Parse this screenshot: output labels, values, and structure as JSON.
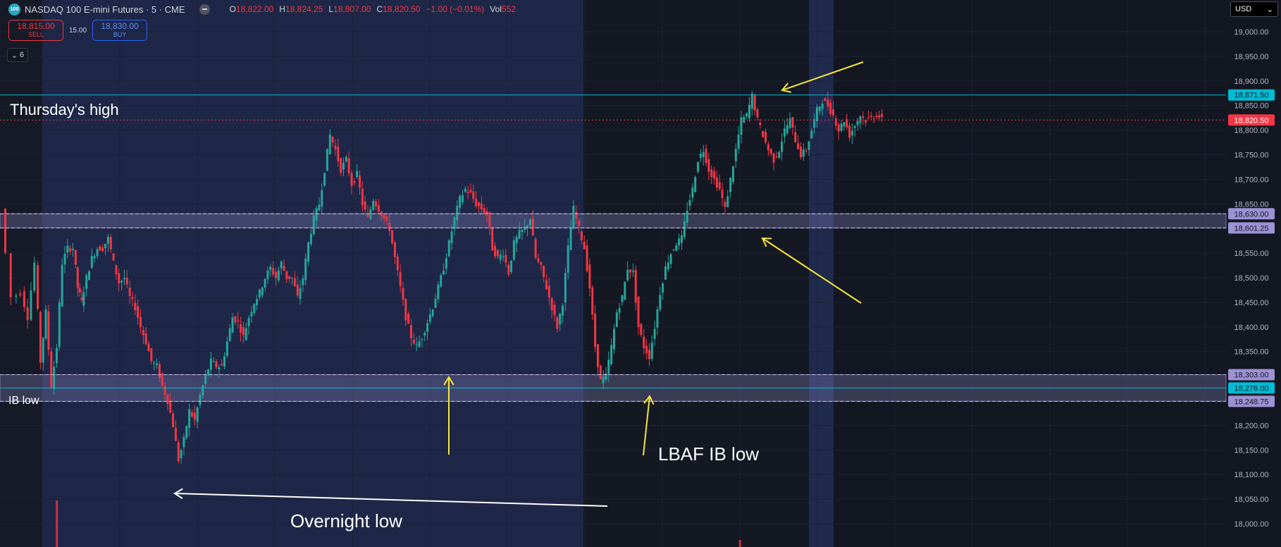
{
  "header": {
    "logo_text": "100",
    "symbol_title": "NASDAQ 100 E-mini Futures · 5 · CME",
    "ohlc": [
      {
        "key": "O",
        "value": "18,822.00"
      },
      {
        "key": "H",
        "value": "18,824.25"
      },
      {
        "key": "L",
        "value": "18,807.00"
      },
      {
        "key": "C",
        "value": "18,820.50"
      }
    ],
    "change": "−1.00 (−0.01%)",
    "vol_label": "Vol",
    "vol_value": "552"
  },
  "trade": {
    "sell_price": "18,815.00",
    "sell_label": "SELL",
    "spread": "15.00",
    "buy_price": "18,830.00",
    "buy_label": "BUY"
  },
  "indicators_collapse": {
    "icon": "chevron-down-icon",
    "count": "6"
  },
  "currency": {
    "selected": "USD",
    "icon": "chevron-down-icon"
  },
  "colors": {
    "up": "#26a69a",
    "down": "#f23645",
    "cyan": "#00bcd4",
    "zone": "#9c92d4",
    "annotation_yellow": "#f5e63a",
    "background": "#131722",
    "session_shade": "#1e2747"
  },
  "chart_data": {
    "type": "candlestick",
    "y_ticks": [
      "19,000.00",
      "18,950.00",
      "18,900.00",
      "18,850.00",
      "18,800.00",
      "18,750.00",
      "18,700.00",
      "18,650.00",
      "18,550.00",
      "18,500.00",
      "18,450.00",
      "18,400.00",
      "18,350.00",
      "18,200.00",
      "18,150.00",
      "18,100.00",
      "18,050.00",
      "18,000.00"
    ],
    "ylim": [
      17960,
      19030
    ],
    "hlines": [
      {
        "price": 18871.5,
        "label": "18,871.50",
        "kind": "cyan"
      },
      {
        "price": 18820.5,
        "label": "18,820.50",
        "kind": "last"
      },
      {
        "price": 18630,
        "label": "18,630.00",
        "kind": "zone"
      },
      {
        "price": 18601.25,
        "label": "18,601.25",
        "kind": "zone"
      },
      {
        "price": 18303,
        "label": "18,303.00",
        "kind": "zone"
      },
      {
        "price": 18276,
        "label": "18,276.00",
        "kind": "cyan"
      },
      {
        "price": 18248.75,
        "label": "18,248.75",
        "kind": "zone"
      }
    ],
    "zones": [
      [
        18601.25,
        18630
      ],
      [
        18248.75,
        18303
      ]
    ],
    "annotations": [
      "Thursday's high",
      "IB low",
      "LBAF IB low",
      "Overnight low"
    ],
    "path": [
      [
        0,
        18640
      ],
      [
        8,
        18460
      ],
      [
        14,
        18470
      ],
      [
        19,
        18420
      ],
      [
        24,
        18530
      ],
      [
        28,
        18330
      ],
      [
        32,
        18430
      ],
      [
        36,
        18280
      ],
      [
        40,
        18360
      ],
      [
        44,
        18530
      ],
      [
        48,
        18560
      ],
      [
        52,
        18560
      ],
      [
        55,
        18480
      ],
      [
        58,
        18450
      ],
      [
        62,
        18500
      ],
      [
        66,
        18540
      ],
      [
        70,
        18560
      ],
      [
        74,
        18560
      ],
      [
        78,
        18580
      ],
      [
        82,
        18530
      ],
      [
        86,
        18490
      ],
      [
        90,
        18500
      ],
      [
        94,
        18460
      ],
      [
        98,
        18440
      ],
      [
        102,
        18400
      ],
      [
        106,
        18370
      ],
      [
        110,
        18330
      ],
      [
        114,
        18320
      ],
      [
        118,
        18280
      ],
      [
        122,
        18250
      ],
      [
        126,
        18200
      ],
      [
        130,
        18130
      ],
      [
        134,
        18170
      ],
      [
        138,
        18230
      ],
      [
        142,
        18210
      ],
      [
        146,
        18260
      ],
      [
        150,
        18300
      ],
      [
        154,
        18330
      ],
      [
        158,
        18320
      ],
      [
        162,
        18320
      ],
      [
        166,
        18370
      ],
      [
        170,
        18420
      ],
      [
        174,
        18410
      ],
      [
        178,
        18380
      ],
      [
        182,
        18420
      ],
      [
        186,
        18450
      ],
      [
        190,
        18470
      ],
      [
        194,
        18500
      ],
      [
        198,
        18520
      ],
      [
        202,
        18500
      ],
      [
        206,
        18530
      ],
      [
        210,
        18500
      ],
      [
        214,
        18500
      ],
      [
        218,
        18460
      ],
      [
        222,
        18500
      ],
      [
        226,
        18570
      ],
      [
        230,
        18620
      ],
      [
        234,
        18650
      ],
      [
        238,
        18720
      ],
      [
        242,
        18790
      ],
      [
        246,
        18760
      ],
      [
        250,
        18720
      ],
      [
        254,
        18740
      ],
      [
        258,
        18690
      ],
      [
        262,
        18710
      ],
      [
        266,
        18650
      ],
      [
        270,
        18620
      ],
      [
        274,
        18660
      ],
      [
        278,
        18640
      ],
      [
        282,
        18620
      ],
      [
        286,
        18600
      ],
      [
        290,
        18540
      ],
      [
        294,
        18480
      ],
      [
        298,
        18420
      ],
      [
        302,
        18380
      ],
      [
        306,
        18360
      ],
      [
        310,
        18380
      ],
      [
        314,
        18410
      ],
      [
        318,
        18440
      ],
      [
        322,
        18480
      ],
      [
        326,
        18520
      ],
      [
        330,
        18570
      ],
      [
        334,
        18620
      ],
      [
        338,
        18660
      ],
      [
        342,
        18680
      ],
      [
        346,
        18670
      ],
      [
        350,
        18650
      ],
      [
        354,
        18640
      ],
      [
        358,
        18630
      ],
      [
        362,
        18560
      ],
      [
        366,
        18540
      ],
      [
        370,
        18550
      ],
      [
        374,
        18510
      ],
      [
        378,
        18570
      ],
      [
        382,
        18590
      ],
      [
        386,
        18600
      ],
      [
        390,
        18620
      ],
      [
        394,
        18540
      ],
      [
        398,
        18520
      ],
      [
        402,
        18480
      ],
      [
        406,
        18440
      ],
      [
        410,
        18400
      ],
      [
        414,
        18450
      ],
      [
        418,
        18560
      ],
      [
        422,
        18640
      ],
      [
        426,
        18600
      ],
      [
        430,
        18560
      ],
      [
        434,
        18480
      ],
      [
        438,
        18360
      ],
      [
        442,
        18290
      ],
      [
        446,
        18300
      ],
      [
        450,
        18360
      ],
      [
        454,
        18430
      ],
      [
        458,
        18460
      ],
      [
        462,
        18520
      ],
      [
        466,
        18510
      ],
      [
        470,
        18400
      ],
      [
        474,
        18360
      ],
      [
        478,
        18340
      ],
      [
        482,
        18400
      ],
      [
        486,
        18470
      ],
      [
        490,
        18520
      ],
      [
        494,
        18550
      ],
      [
        498,
        18570
      ],
      [
        502,
        18580
      ],
      [
        506,
        18640
      ],
      [
        510,
        18680
      ],
      [
        514,
        18740
      ],
      [
        518,
        18760
      ],
      [
        522,
        18720
      ],
      [
        526,
        18700
      ],
      [
        530,
        18680
      ],
      [
        534,
        18640
      ],
      [
        538,
        18700
      ],
      [
        542,
        18760
      ],
      [
        546,
        18820
      ],
      [
        550,
        18830
      ],
      [
        554,
        18870
      ],
      [
        558,
        18820
      ],
      [
        562,
        18790
      ],
      [
        566,
        18760
      ],
      [
        570,
        18740
      ],
      [
        574,
        18760
      ],
      [
        578,
        18800
      ],
      [
        582,
        18820
      ],
      [
        586,
        18780
      ],
      [
        590,
        18750
      ],
      [
        594,
        18760
      ],
      [
        598,
        18800
      ],
      [
        602,
        18840
      ],
      [
        606,
        18860
      ],
      [
        610,
        18850
      ],
      [
        614,
        18830
      ],
      [
        618,
        18800
      ],
      [
        622,
        18820
      ],
      [
        626,
        18790
      ],
      [
        630,
        18810
      ],
      [
        634,
        18830
      ],
      [
        638,
        18820
      ],
      [
        642,
        18825
      ],
      [
        646,
        18832
      ],
      [
        650,
        18821
      ]
    ],
    "volume_spikes": [
      [
        35,
        0.33
      ],
      [
        540,
        0.05
      ]
    ]
  }
}
